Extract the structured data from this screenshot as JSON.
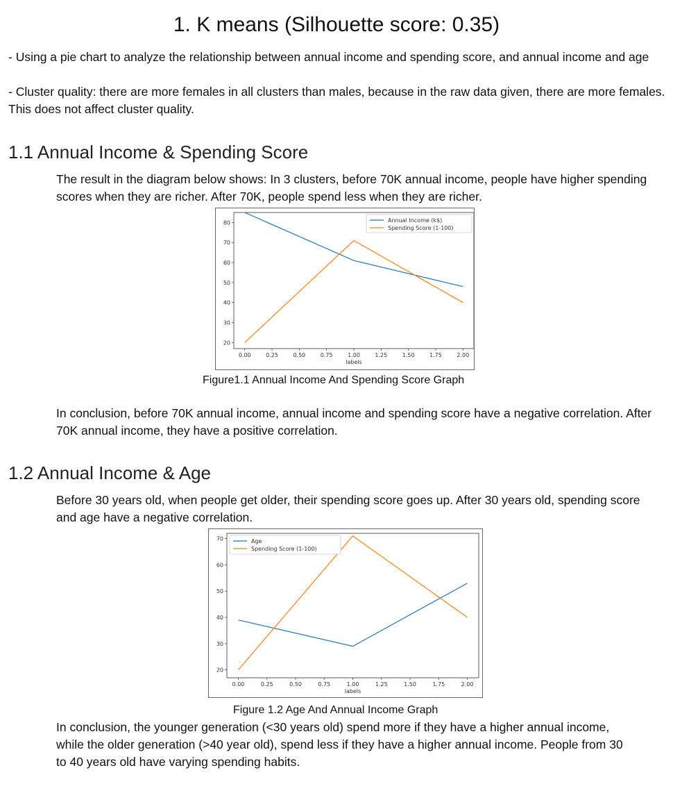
{
  "doc": {
    "title": "1. K means (Silhouette score: 0.35)",
    "intro_line1": "- Using a pie chart to analyze the relationship between annual income and spending score, and annual income and age",
    "intro_line2": "- Cluster quality: there are more females in all clusters than males, because in the raw data given, there are more females. This does not affect cluster quality.",
    "s1": {
      "heading": "1.1 Annual Income & Spending Score",
      "para": "The result in the diagram below shows: In 3 clusters,  before 70K annual income, people have higher spending scores when they are richer.  After 70K, people spend less when they are richer.",
      "caption": "Figure1.1 Annual Income And Spending Score Graph",
      "conclusion": "In conclusion, before 70K annual income, annual income and spending score have a negative correlation. After 70K annual income, they have a positive correlation."
    },
    "s2": {
      "heading": "1.2 Annual Income & Age",
      "para": "Before 30 years old, when people get older, their spending score goes up.  After 30 years old, spending score and age have a negative correlation.",
      "caption": "Figure 1.2 Age And Annual Income Graph",
      "conclusion": "In conclusion, the younger generation (<30 years old) spend more if they have a higher annual income, while the older generation (>40 year old), spend less if they have a higher annual income. People from 30 to 40 years old have varying spending habits."
    }
  },
  "chart_data": [
    {
      "type": "line",
      "x": [
        0,
        1,
        2
      ],
      "xlabel": "labels",
      "ylabel": "",
      "xlim": [
        -0.1,
        2.1
      ],
      "ylim": [
        17,
        85
      ],
      "xticks": [
        0.0,
        0.25,
        0.5,
        0.75,
        1.0,
        1.25,
        1.5,
        1.75,
        2.0
      ],
      "xtick_labels": [
        "0.00",
        "0.25",
        "0.50",
        "0.75",
        "1.00",
        "1.25",
        "1.50",
        "1.75",
        "2.00"
      ],
      "yticks": [
        20,
        30,
        40,
        50,
        60,
        70,
        80
      ],
      "ytick_labels": [
        "20",
        "30",
        "40",
        "50",
        "60",
        "70",
        "80"
      ],
      "legend": "top-right",
      "series": [
        {
          "name": "Annual Income (k$)",
          "color": "#1f77b4",
          "values": [
            85,
            61,
            48
          ]
        },
        {
          "name": "Spending Score (1-100)",
          "color": "#ff7f0e",
          "values": [
            20,
            71,
            40
          ]
        }
      ]
    },
    {
      "type": "line",
      "x": [
        0,
        1,
        2
      ],
      "xlabel": "labels",
      "ylabel": "",
      "xlim": [
        -0.1,
        2.1
      ],
      "ylim": [
        17,
        72
      ],
      "xticks": [
        0.0,
        0.25,
        0.5,
        0.75,
        1.0,
        1.25,
        1.5,
        1.75,
        2.0
      ],
      "xtick_labels": [
        "0.00",
        "0.25",
        "0.50",
        "0.75",
        "1.00",
        "1.25",
        "1.50",
        "1.75",
        "2.00"
      ],
      "yticks": [
        20,
        30,
        40,
        50,
        60,
        70
      ],
      "ytick_labels": [
        "20",
        "30",
        "40",
        "50",
        "60",
        "70"
      ],
      "legend": "top-left",
      "series": [
        {
          "name": "Age",
          "color": "#1f77b4",
          "values": [
            39,
            29,
            53
          ]
        },
        {
          "name": "Spending Score (1-100)",
          "color": "#ff7f0e",
          "values": [
            20,
            71,
            40
          ]
        }
      ]
    }
  ]
}
